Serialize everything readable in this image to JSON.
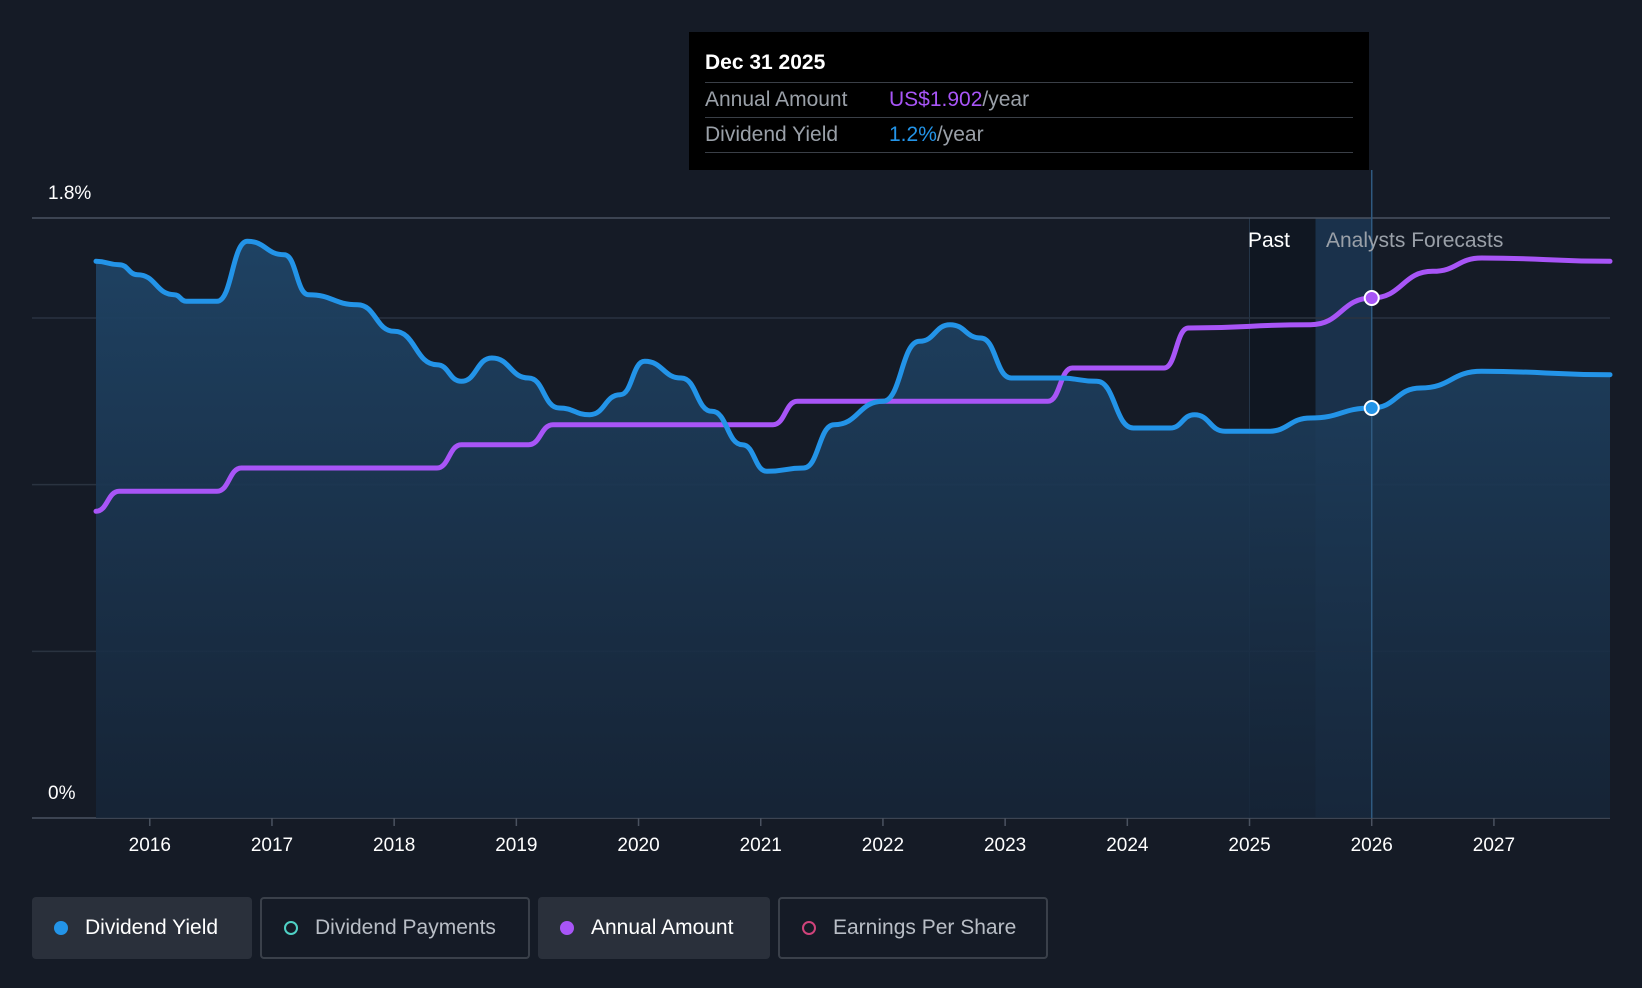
{
  "chart_data": {
    "type": "area",
    "y_axis": {
      "max_label": "1.8%",
      "min_label": "0%",
      "ylim": [
        0,
        1.8
      ]
    },
    "x_ticks": [
      "2016",
      "2017",
      "2018",
      "2019",
      "2020",
      "2021",
      "2022",
      "2023",
      "2024",
      "2025",
      "2026",
      "2027"
    ],
    "xlim": [
      2015.56,
      2027.95
    ],
    "section_labels": {
      "past": "Past",
      "forecast": "Analysts Forecasts"
    },
    "past_region": [
      2025.0,
      2025.54
    ],
    "forecast_region": [
      2025.54,
      2026.0
    ],
    "series": [
      {
        "name": "Dividend Yield",
        "color": "#2394e8",
        "unit": "%",
        "points": [
          [
            2015.56,
            1.67
          ],
          [
            2015.75,
            1.66
          ],
          [
            2015.9,
            1.63
          ],
          [
            2016.2,
            1.57
          ],
          [
            2016.3,
            1.55
          ],
          [
            2016.55,
            1.55
          ],
          [
            2016.8,
            1.73
          ],
          [
            2017.1,
            1.69
          ],
          [
            2017.3,
            1.57
          ],
          [
            2017.7,
            1.54
          ],
          [
            2018.0,
            1.46
          ],
          [
            2018.35,
            1.36
          ],
          [
            2018.55,
            1.31
          ],
          [
            2018.8,
            1.38
          ],
          [
            2019.1,
            1.32
          ],
          [
            2019.35,
            1.23
          ],
          [
            2019.6,
            1.21
          ],
          [
            2019.85,
            1.27
          ],
          [
            2020.05,
            1.37
          ],
          [
            2020.35,
            1.32
          ],
          [
            2020.6,
            1.22
          ],
          [
            2020.85,
            1.12
          ],
          [
            2021.05,
            1.04
          ],
          [
            2021.35,
            1.05
          ],
          [
            2021.6,
            1.18
          ],
          [
            2022.0,
            1.25
          ],
          [
            2022.3,
            1.43
          ],
          [
            2022.55,
            1.48
          ],
          [
            2022.8,
            1.44
          ],
          [
            2023.05,
            1.32
          ],
          [
            2023.45,
            1.32
          ],
          [
            2023.75,
            1.31
          ],
          [
            2024.05,
            1.17
          ],
          [
            2024.35,
            1.17
          ],
          [
            2024.55,
            1.21
          ],
          [
            2024.8,
            1.16
          ],
          [
            2025.15,
            1.16
          ],
          [
            2025.5,
            1.2
          ],
          [
            2026.0,
            1.23
          ],
          [
            2026.4,
            1.29
          ],
          [
            2026.9,
            1.34
          ],
          [
            2027.95,
            1.33
          ]
        ]
      },
      {
        "name": "Annual Amount",
        "color": "#a855f7",
        "unit": "US$/year",
        "points": [
          [
            2015.56,
            0.92
          ],
          [
            2015.75,
            0.98
          ],
          [
            2016.55,
            0.98
          ],
          [
            2016.75,
            1.05
          ],
          [
            2018.35,
            1.05
          ],
          [
            2018.55,
            1.12
          ],
          [
            2019.1,
            1.12
          ],
          [
            2019.3,
            1.18
          ],
          [
            2021.1,
            1.18
          ],
          [
            2021.3,
            1.25
          ],
          [
            2023.35,
            1.25
          ],
          [
            2023.55,
            1.35
          ],
          [
            2024.3,
            1.35
          ],
          [
            2024.5,
            1.47
          ],
          [
            2025.5,
            1.48
          ],
          [
            2026.0,
            1.56
          ],
          [
            2026.5,
            1.64
          ],
          [
            2026.9,
            1.68
          ],
          [
            2027.95,
            1.67
          ]
        ]
      }
    ],
    "tooltip": {
      "date": "Dec 31 2025",
      "x": 2026.0,
      "rows": [
        {
          "label": "Annual Amount",
          "value": "US$1.902",
          "unit": "/year",
          "color": "#a855f7"
        },
        {
          "label": "Dividend Yield",
          "value": "1.2%",
          "unit": "/year",
          "color": "#2394e8"
        }
      ]
    },
    "grid": true
  },
  "legend": [
    {
      "label": "Dividend Yield",
      "color": "#2394e8",
      "active": true
    },
    {
      "label": "Dividend Payments",
      "color": "#4fd1c5",
      "active": false
    },
    {
      "label": "Annual Amount",
      "color": "#a855f7",
      "active": true
    },
    {
      "label": "Earnings Per Share",
      "color": "#d0437b",
      "active": false
    }
  ],
  "colors": {
    "background": "#151b26",
    "area_fill": "#1c3a55",
    "grid": "#2a3340",
    "axis_text": "#ffffff",
    "muted_text": "#9aa0a8"
  }
}
